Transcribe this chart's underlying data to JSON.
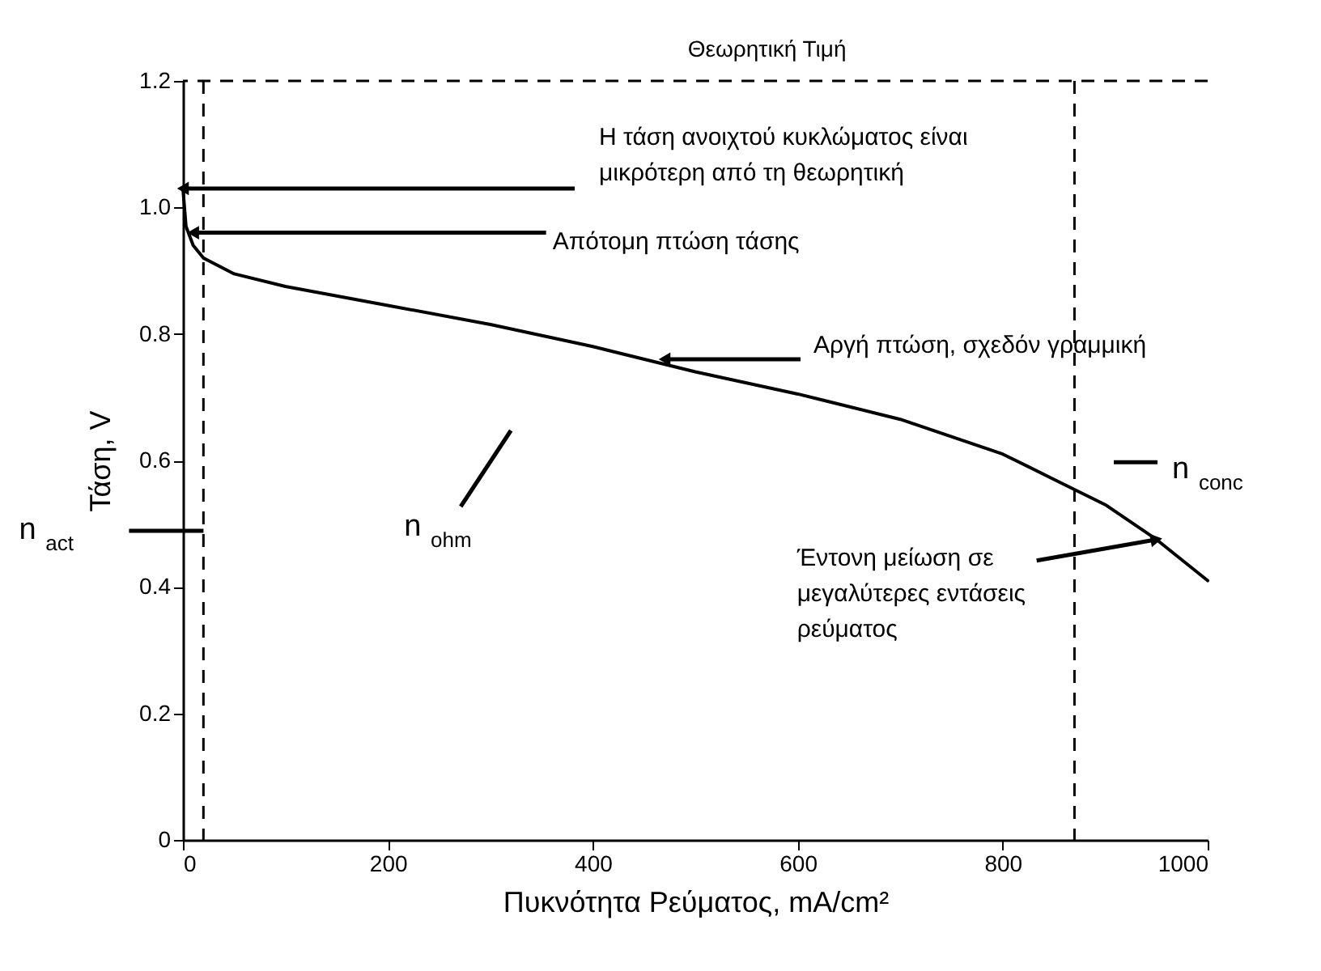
{
  "chart_data": {
    "type": "line",
    "xlabel": "Πυκνότητα Ρεύματος, mA/cm²",
    "ylabel": "Τάση, V",
    "x": [
      0,
      3,
      10,
      20,
      50,
      100,
      200,
      300,
      400,
      500,
      600,
      700,
      800,
      850,
      900,
      950,
      1000
    ],
    "series": [
      {
        "color": "#000000",
        "values": [
          1.03,
          0.97,
          0.94,
          0.92,
          0.895,
          0.875,
          0.845,
          0.815,
          0.78,
          0.74,
          0.705,
          0.665,
          0.61,
          0.57,
          0.53,
          0.475,
          0.41
        ]
      }
    ],
    "xlim": [
      0,
      1000
    ],
    "xticks": [
      0,
      200,
      400,
      600,
      800,
      1000
    ],
    "ylim": [
      0,
      1.2
    ],
    "yticks": [
      0,
      0.2,
      0.4,
      0.6,
      0.8,
      {
        "value": 1,
        "label": "1.0"
      },
      1.2
    ],
    "grid": false,
    "marker": "none",
    "line_style": "solid",
    "ref_lines": [
      {
        "axis": "y",
        "value": 1.2,
        "label": "Θεωρητική Τιμή",
        "line_style": "dashed",
        "color": "#000000"
      },
      {
        "axis": "x",
        "value": 20,
        "label": null,
        "line_style": "dashed",
        "color": "#000000"
      },
      {
        "axis": "x",
        "value": 870,
        "label": null,
        "line_style": "dashed",
        "color": "#000000"
      }
    ],
    "annotations": [
      {
        "text": "Η τάση ανοιχτού κυκλώματος είναι μικρότερη από τη θεωρητική",
        "x": 0,
        "y": 1.03
      },
      {
        "text": "Απότομη πτώση τάσης",
        "x": 10,
        "y": 0.96
      },
      {
        "text": "Αργή πτώση, σχεδόν γραμμική",
        "x": 470,
        "y": 0.76
      },
      {
        "text": "Έντονη μείωση σε μεγαλύτερες εντάσεις ρεύματος",
        "x": 950,
        "y": 0.475
      },
      "n$_{act}$",
      "n$_{ohm}$",
      "n$_{conc}$"
    ]
  }
}
